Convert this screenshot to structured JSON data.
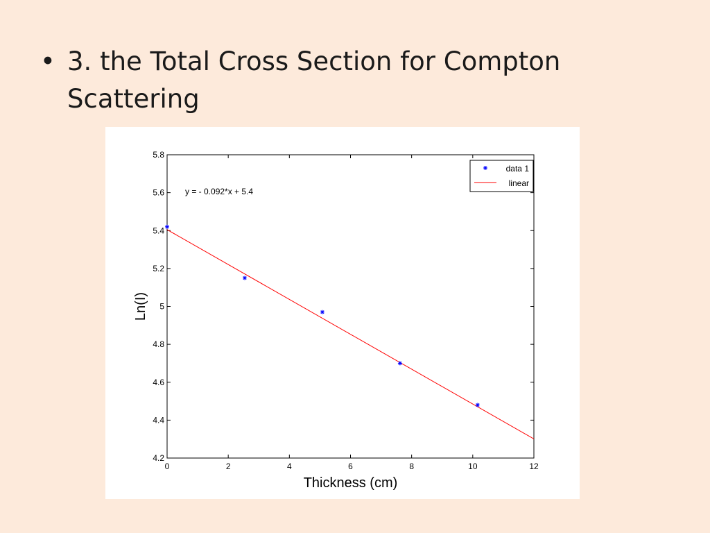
{
  "slide": {
    "bullet": "•",
    "title": "3. the Total Cross Section for Compton Scattering"
  },
  "chart_data": {
    "type": "scatter",
    "xlabel": "Thickness (cm)",
    "ylabel": "Ln(I)",
    "xlim": [
      0,
      12
    ],
    "ylim": [
      4.2,
      5.8
    ],
    "xticks": [
      0,
      2,
      4,
      6,
      8,
      10,
      12
    ],
    "xtick_labels": [
      "0",
      "2",
      "4",
      "6",
      "8",
      "10",
      "12"
    ],
    "yticks": [
      4.2,
      4.4,
      4.6,
      4.8,
      5.0,
      5.2,
      5.4,
      5.6,
      5.8
    ],
    "ytick_labels": [
      "4.2",
      "4.4",
      "4.6",
      "4.8",
      "5",
      "5.2",
      "5.4",
      "5.6",
      "5.8"
    ],
    "grid": false,
    "legend_position": "top-right",
    "annotation": "y = - 0.092*x + 5.4",
    "series": [
      {
        "name": "data 1",
        "kind": "points",
        "marker": "asterisk",
        "color": "#0000ff",
        "x": [
          0,
          2.54,
          5.08,
          7.62,
          10.16
        ],
        "y": [
          5.42,
          5.15,
          4.97,
          4.7,
          4.48
        ]
      },
      {
        "name": "linear",
        "kind": "line",
        "color": "#ff0000",
        "x": [
          0,
          12
        ],
        "y": [
          5.405,
          4.301
        ]
      }
    ]
  }
}
